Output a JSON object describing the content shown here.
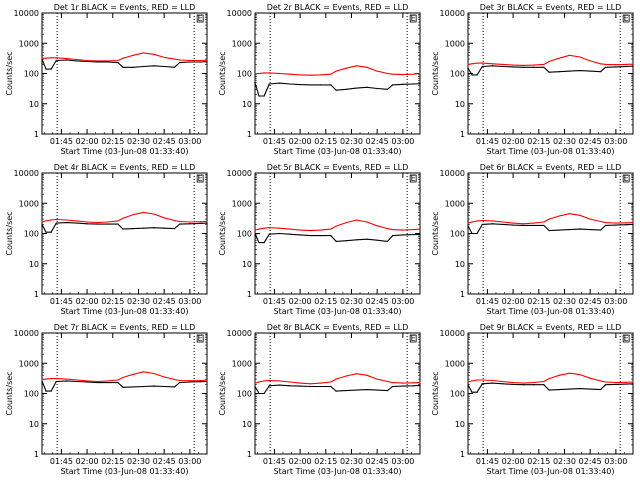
{
  "x_tick_labels": [
    "01:45",
    "02:00",
    "02:15",
    "02:30",
    "02:45",
    "03:00"
  ],
  "y_tick_labels": [
    "1",
    "10",
    "100",
    "1000",
    "10000"
  ],
  "marker_label": "E",
  "colors": {
    "events": "#000000",
    "lld": "#ff0000"
  },
  "chart_data": [
    {
      "type": "line",
      "title": "Det 1r BLACK = Events, RED = LLD",
      "xlabel": "Start Time (03-Jun-08 01:33:40)",
      "ylabel": "Counts/sec",
      "xlim": [
        "01:33:40",
        "03:10"
      ],
      "ylim": [
        1,
        10000
      ],
      "yscale": "log",
      "x": [
        "01:33:40",
        "01:36",
        "01:39",
        "01:42",
        "01:48",
        "01:54",
        "02:00",
        "02:06",
        "02:12",
        "02:18",
        "02:21",
        "02:27",
        "02:33",
        "02:39",
        "02:45",
        "02:51",
        "02:54",
        "03:00",
        "03:06",
        "03:10"
      ],
      "series": [
        {
          "name": "Events",
          "values": [
            300,
            140,
            140,
            270,
            280,
            260,
            250,
            240,
            240,
            230,
            160,
            160,
            170,
            180,
            170,
            160,
            230,
            240,
            240,
            245
          ]
        },
        {
          "name": "LLD",
          "values": [
            320,
            320,
            330,
            330,
            310,
            290,
            270,
            260,
            260,
            270,
            320,
            400,
            480,
            430,
            340,
            300,
            280,
            270,
            270,
            275
          ]
        }
      ]
    },
    {
      "type": "line",
      "title": "Det 2r BLACK = Events, RED = LLD",
      "xlabel": "Start Time (03-Jun-08 01:33:40)",
      "ylabel": "Counts/sec",
      "xlim": [
        "01:33:40",
        "03:10"
      ],
      "ylim": [
        1,
        10000
      ],
      "yscale": "log",
      "x": [
        "01:33:40",
        "01:36",
        "01:39",
        "01:42",
        "01:48",
        "01:54",
        "02:00",
        "02:06",
        "02:12",
        "02:18",
        "02:21",
        "02:27",
        "02:33",
        "02:39",
        "02:45",
        "02:51",
        "02:54",
        "03:00",
        "03:06",
        "03:10"
      ],
      "series": [
        {
          "name": "Events",
          "values": [
            50,
            18,
            18,
            45,
            48,
            45,
            43,
            42,
            42,
            42,
            28,
            30,
            33,
            35,
            32,
            30,
            42,
            44,
            45,
            46
          ]
        },
        {
          "name": "LLD",
          "values": [
            100,
            100,
            105,
            105,
            100,
            95,
            90,
            88,
            90,
            95,
            120,
            150,
            180,
            160,
            120,
            100,
            95,
            92,
            95,
            100
          ]
        }
      ]
    },
    {
      "type": "line",
      "title": "Det 3r BLACK = Events, RED = LLD",
      "xlabel": "Start Time (03-Jun-08 01:33:40)",
      "ylabel": "Counts/sec",
      "xlim": [
        "01:33:40",
        "03:10"
      ],
      "ylim": [
        1,
        10000
      ],
      "yscale": "log",
      "x": [
        "01:33:40",
        "01:36",
        "01:39",
        "01:42",
        "01:48",
        "01:54",
        "02:00",
        "02:06",
        "02:12",
        "02:18",
        "02:21",
        "02:27",
        "02:33",
        "02:39",
        "02:45",
        "02:51",
        "02:54",
        "03:00",
        "03:06",
        "03:10"
      ],
      "series": [
        {
          "name": "Events",
          "values": [
            150,
            90,
            90,
            170,
            180,
            170,
            165,
            160,
            160,
            160,
            110,
            115,
            120,
            125,
            120,
            115,
            160,
            165,
            170,
            175
          ]
        },
        {
          "name": "LLD",
          "values": [
            200,
            210,
            220,
            220,
            210,
            200,
            190,
            185,
            190,
            200,
            250,
            320,
            400,
            350,
            260,
            210,
            200,
            195,
            200,
            205
          ]
        }
      ]
    },
    {
      "type": "line",
      "title": "Det 4r BLACK = Events, RED = LLD",
      "xlabel": "Start Time (03-Jun-08 01:33:40)",
      "ylabel": "Counts/sec",
      "xlim": [
        "01:33:40",
        "03:10"
      ],
      "ylim": [
        1,
        10000
      ],
      "yscale": "log",
      "x": [
        "01:33:40",
        "01:36",
        "01:39",
        "01:42",
        "01:48",
        "01:54",
        "02:00",
        "02:06",
        "02:12",
        "02:18",
        "02:21",
        "02:27",
        "02:33",
        "02:39",
        "02:45",
        "02:51",
        "02:54",
        "03:00",
        "03:06",
        "03:10"
      ],
      "series": [
        {
          "name": "Events",
          "values": [
            200,
            110,
            110,
            220,
            230,
            220,
            210,
            205,
            205,
            205,
            140,
            145,
            150,
            155,
            150,
            145,
            205,
            210,
            215,
            220
          ]
        },
        {
          "name": "LLD",
          "values": [
            240,
            260,
            280,
            290,
            280,
            260,
            240,
            230,
            240,
            260,
            320,
            420,
            500,
            440,
            330,
            270,
            250,
            240,
            245,
            250
          ]
        }
      ]
    },
    {
      "type": "line",
      "title": "Det 5r BLACK = Events, RED = LLD",
      "xlabel": "Start Time (03-Jun-08 01:33:40)",
      "ylabel": "Counts/sec",
      "xlim": [
        "01:33:40",
        "03:10"
      ],
      "ylim": [
        1,
        10000
      ],
      "yscale": "log",
      "x": [
        "01:33:40",
        "01:36",
        "01:39",
        "01:42",
        "01:48",
        "01:54",
        "02:00",
        "02:06",
        "02:12",
        "02:18",
        "02:21",
        "02:27",
        "02:33",
        "02:39",
        "02:45",
        "02:51",
        "02:54",
        "03:00",
        "03:06",
        "03:10"
      ],
      "series": [
        {
          "name": "Events",
          "values": [
            100,
            50,
            50,
            95,
            100,
            95,
            90,
            85,
            85,
            85,
            55,
            58,
            62,
            65,
            60,
            55,
            85,
            90,
            92,
            95
          ]
        },
        {
          "name": "LLD",
          "values": [
            130,
            140,
            150,
            155,
            150,
            140,
            130,
            125,
            130,
            140,
            175,
            230,
            280,
            240,
            180,
            145,
            135,
            130,
            135,
            140
          ]
        }
      ]
    },
    {
      "type": "line",
      "title": "Det 6r BLACK = Events, RED = LLD",
      "xlabel": "Start Time (03-Jun-08 01:33:40)",
      "ylabel": "Counts/sec",
      "xlim": [
        "01:33:40",
        "03:10"
      ],
      "ylim": [
        1,
        10000
      ],
      "yscale": "log",
      "x": [
        "01:33:40",
        "01:36",
        "01:39",
        "01:42",
        "01:48",
        "01:54",
        "02:00",
        "02:06",
        "02:12",
        "02:18",
        "02:21",
        "02:27",
        "02:33",
        "02:39",
        "02:45",
        "02:51",
        "02:54",
        "03:00",
        "03:06",
        "03:10"
      ],
      "series": [
        {
          "name": "Events",
          "values": [
            180,
            100,
            100,
            200,
            210,
            200,
            190,
            185,
            185,
            185,
            125,
            130,
            135,
            140,
            135,
            130,
            185,
            190,
            195,
            200
          ]
        },
        {
          "name": "LLD",
          "values": [
            220,
            240,
            260,
            270,
            260,
            240,
            220,
            210,
            220,
            240,
            300,
            380,
            450,
            400,
            300,
            250,
            230,
            220,
            225,
            230
          ]
        }
      ]
    },
    {
      "type": "line",
      "title": "Det 7r BLACK = Events, RED = LLD",
      "xlabel": "Start Time (03-Jun-08 01:33:40)",
      "ylabel": "Counts/sec",
      "xlim": [
        "01:33:40",
        "03:10"
      ],
      "ylim": [
        1,
        10000
      ],
      "yscale": "log",
      "x": [
        "01:33:40",
        "01:36",
        "01:39",
        "01:42",
        "01:48",
        "01:54",
        "02:00",
        "02:06",
        "02:12",
        "02:18",
        "02:21",
        "02:27",
        "02:33",
        "02:39",
        "02:45",
        "02:51",
        "02:54",
        "03:00",
        "03:06",
        "03:10"
      ],
      "series": [
        {
          "name": "Events",
          "values": [
            260,
            120,
            120,
            250,
            260,
            250,
            240,
            230,
            230,
            230,
            160,
            165,
            170,
            175,
            170,
            165,
            230,
            240,
            245,
            250
          ]
        },
        {
          "name": "LLD",
          "values": [
            290,
            300,
            310,
            310,
            300,
            280,
            260,
            250,
            260,
            280,
            340,
            430,
            520,
            460,
            350,
            290,
            270,
            265,
            270,
            275
          ]
        }
      ]
    },
    {
      "type": "line",
      "title": "Det 8r BLACK = Events, RED = LLD",
      "xlabel": "Start Time (03-Jun-08 01:33:40)",
      "ylabel": "Counts/sec",
      "xlim": [
        "01:33:40",
        "03:10"
      ],
      "ylim": [
        1,
        10000
      ],
      "yscale": "log",
      "x": [
        "01:33:40",
        "01:36",
        "01:39",
        "01:42",
        "01:48",
        "01:54",
        "02:00",
        "02:06",
        "02:12",
        "02:18",
        "02:21",
        "02:27",
        "02:33",
        "02:39",
        "02:45",
        "02:51",
        "02:54",
        "03:00",
        "03:06",
        "03:10"
      ],
      "series": [
        {
          "name": "Events",
          "values": [
            170,
            100,
            100,
            180,
            190,
            180,
            175,
            170,
            170,
            170,
            120,
            125,
            130,
            135,
            130,
            125,
            170,
            175,
            180,
            185
          ]
        },
        {
          "name": "LLD",
          "values": [
            220,
            240,
            260,
            270,
            260,
            240,
            220,
            210,
            220,
            240,
            300,
            380,
            450,
            400,
            300,
            250,
            230,
            220,
            225,
            230
          ]
        }
      ]
    },
    {
      "type": "line",
      "title": "Det 9r BLACK = Events, RED = LLD",
      "xlabel": "Start Time (03-Jun-08 01:33:40)",
      "ylabel": "Counts/sec",
      "xlim": [
        "01:33:40",
        "03:10"
      ],
      "ylim": [
        1,
        10000
      ],
      "yscale": "log",
      "x": [
        "01:33:40",
        "01:36",
        "01:39",
        "01:42",
        "01:48",
        "01:54",
        "02:00",
        "02:06",
        "02:12",
        "02:18",
        "02:21",
        "02:27",
        "02:33",
        "02:39",
        "02:45",
        "02:51",
        "02:54",
        "03:00",
        "03:06",
        "03:10"
      ],
      "series": [
        {
          "name": "Events",
          "values": [
            190,
            110,
            110,
            210,
            220,
            210,
            200,
            195,
            195,
            195,
            130,
            135,
            140,
            145,
            140,
            135,
            195,
            200,
            205,
            210
          ]
        },
        {
          "name": "LLD",
          "values": [
            240,
            260,
            280,
            280,
            270,
            250,
            230,
            220,
            230,
            250,
            310,
            400,
            470,
            420,
            320,
            260,
            240,
            230,
            235,
            240
          ]
        }
      ]
    }
  ]
}
